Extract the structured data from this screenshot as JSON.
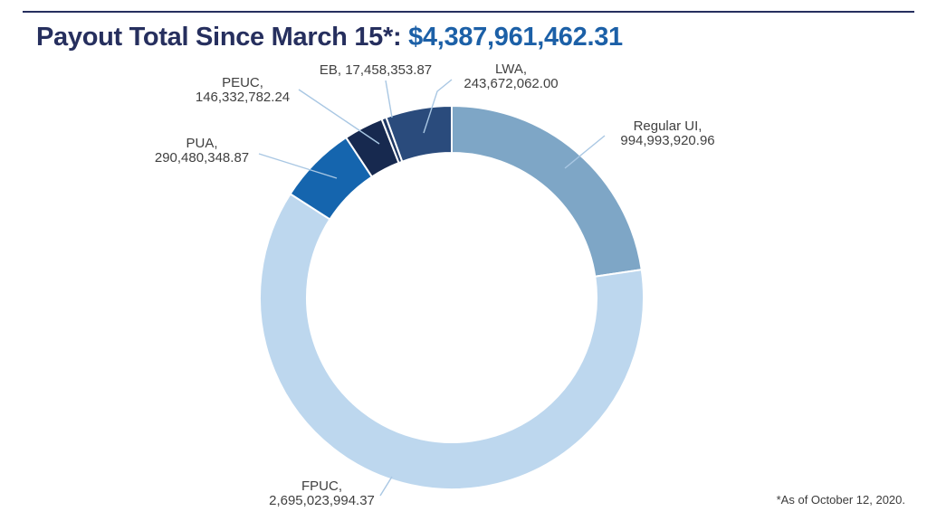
{
  "header": {
    "title_prefix": "Payout Total Since March 15*: ",
    "title_amount": "$4,387,961,462.31",
    "title_prefix_color": "#262F5E",
    "title_amount_color": "#1C60A7",
    "rule_color": "#262F5E"
  },
  "chart_data": {
    "type": "pie",
    "subtype": "donut",
    "title": "Payout Total Since March 15*: $4,387,961,462.31",
    "total": 4387961462.31,
    "legend_position": "none",
    "label_style": "category and value outside ring with leader lines",
    "start_angle_deg": 0,
    "direction": "clockwise",
    "segments": [
      {
        "name": "Regular UI",
        "slug": "regular-ui",
        "value": 994993920.96,
        "color": "#7EA6C6"
      },
      {
        "name": "FPUC",
        "slug": "fpuc",
        "value": 2695023994.37,
        "color": "#BDD7EE"
      },
      {
        "name": "PUA",
        "slug": "pua",
        "value": 290480348.87,
        "color": "#1565AE"
      },
      {
        "name": "PEUC",
        "slug": "peuc",
        "value": 146332782.24,
        "color": "#17294F"
      },
      {
        "name": "EB",
        "slug": "eb",
        "value": 17458353.87,
        "color": "#1F3864"
      },
      {
        "name": "LWA",
        "slug": "lwa",
        "value": 243672062.0,
        "color": "#2A4B7C"
      }
    ]
  },
  "labels": {
    "regular-ui": {
      "line1": "Regular UI,",
      "line2": "994,993,920.96"
    },
    "fpuc": {
      "line1": "FPUC,",
      "line2": "2,695,023,994.37"
    },
    "pua": {
      "line1": "PUA,",
      "line2": "290,480,348.87"
    },
    "peuc": {
      "line1": "PEUC,",
      "line2": "146,332,782.24"
    },
    "eb": {
      "line1": "EB, 17,458,353.87"
    },
    "lwa": {
      "line1": "LWA,",
      "line2": "243,672,062.00"
    }
  },
  "footnote": {
    "text": "*As of October 12, 2020."
  },
  "colors": {
    "leader_line": "#A9C7E3",
    "label_text": "#404040",
    "segment_gap": "#FFFFFF"
  }
}
